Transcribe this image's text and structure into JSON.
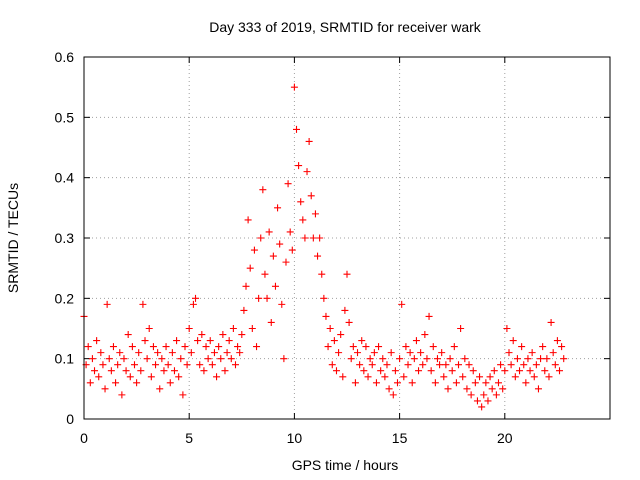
{
  "chart_data": {
    "type": "scatter",
    "title": "Day 333 of 2019, SRMTID for receiver wark",
    "xlabel": "GPS time / hours",
    "ylabel": "SRMTID / TECUs",
    "xlim": [
      0,
      25
    ],
    "ylim": [
      0,
      0.6
    ],
    "x_ticks": [
      0,
      5,
      10,
      15,
      20
    ],
    "x_tick_labels": [
      "0",
      "5",
      "10",
      "15",
      "20"
    ],
    "y_ticks": [
      0,
      0.1,
      0.2,
      0.3,
      0.4,
      0.5,
      0.6
    ],
    "y_tick_labels": [
      "0",
      "0.1",
      "0.2",
      "0.3",
      "0.4",
      "0.5",
      "0.6"
    ],
    "grid": true,
    "marker": "plus",
    "color": "#ff0000",
    "series": [
      {
        "name": "SRMTID",
        "points": [
          [
            0.0,
            0.17
          ],
          [
            0.1,
            0.09
          ],
          [
            0.2,
            0.12
          ],
          [
            0.3,
            0.06
          ],
          [
            0.4,
            0.1
          ],
          [
            0.5,
            0.08
          ],
          [
            0.6,
            0.13
          ],
          [
            0.7,
            0.07
          ],
          [
            0.8,
            0.11
          ],
          [
            0.9,
            0.09
          ],
          [
            1.0,
            0.05
          ],
          [
            1.1,
            0.19
          ],
          [
            1.2,
            0.1
          ],
          [
            1.3,
            0.08
          ],
          [
            1.4,
            0.12
          ],
          [
            1.5,
            0.06
          ],
          [
            1.6,
            0.09
          ],
          [
            1.7,
            0.11
          ],
          [
            1.8,
            0.04
          ],
          [
            1.9,
            0.1
          ],
          [
            2.0,
            0.08
          ],
          [
            2.1,
            0.14
          ],
          [
            2.2,
            0.07
          ],
          [
            2.3,
            0.12
          ],
          [
            2.4,
            0.09
          ],
          [
            2.5,
            0.06
          ],
          [
            2.6,
            0.11
          ],
          [
            2.7,
            0.08
          ],
          [
            2.8,
            0.19
          ],
          [
            2.9,
            0.13
          ],
          [
            3.0,
            0.1
          ],
          [
            3.1,
            0.15
          ],
          [
            3.2,
            0.07
          ],
          [
            3.3,
            0.12
          ],
          [
            3.4,
            0.09
          ],
          [
            3.5,
            0.11
          ],
          [
            3.6,
            0.05
          ],
          [
            3.7,
            0.1
          ],
          [
            3.8,
            0.08
          ],
          [
            3.9,
            0.12
          ],
          [
            4.0,
            0.09
          ],
          [
            4.1,
            0.06
          ],
          [
            4.2,
            0.11
          ],
          [
            4.3,
            0.08
          ],
          [
            4.4,
            0.13
          ],
          [
            4.5,
            0.07
          ],
          [
            4.6,
            0.1
          ],
          [
            4.7,
            0.04
          ],
          [
            4.8,
            0.12
          ],
          [
            4.9,
            0.09
          ],
          [
            5.0,
            0.15
          ],
          [
            5.1,
            0.11
          ],
          [
            5.2,
            0.19
          ],
          [
            5.3,
            0.2
          ],
          [
            5.4,
            0.13
          ],
          [
            5.5,
            0.09
          ],
          [
            5.6,
            0.14
          ],
          [
            5.7,
            0.08
          ],
          [
            5.8,
            0.12
          ],
          [
            5.9,
            0.1
          ],
          [
            6.0,
            0.13
          ],
          [
            6.1,
            0.09
          ],
          [
            6.2,
            0.11
          ],
          [
            6.3,
            0.07
          ],
          [
            6.4,
            0.12
          ],
          [
            6.5,
            0.1
          ],
          [
            6.6,
            0.14
          ],
          [
            6.7,
            0.08
          ],
          [
            6.8,
            0.11
          ],
          [
            6.9,
            0.13
          ],
          [
            7.0,
            0.1
          ],
          [
            7.1,
            0.15
          ],
          [
            7.2,
            0.09
          ],
          [
            7.3,
            0.12
          ],
          [
            7.4,
            0.11
          ],
          [
            7.5,
            0.14
          ],
          [
            7.6,
            0.18
          ],
          [
            7.7,
            0.22
          ],
          [
            7.8,
            0.33
          ],
          [
            7.9,
            0.25
          ],
          [
            8.0,
            0.15
          ],
          [
            8.1,
            0.28
          ],
          [
            8.2,
            0.12
          ],
          [
            8.3,
            0.2
          ],
          [
            8.4,
            0.3
          ],
          [
            8.5,
            0.38
          ],
          [
            8.6,
            0.24
          ],
          [
            8.7,
            0.2
          ],
          [
            8.8,
            0.31
          ],
          [
            8.9,
            0.16
          ],
          [
            9.0,
            0.27
          ],
          [
            9.1,
            0.22
          ],
          [
            9.2,
            0.35
          ],
          [
            9.3,
            0.29
          ],
          [
            9.4,
            0.19
          ],
          [
            9.5,
            0.1
          ],
          [
            9.6,
            0.26
          ],
          [
            9.7,
            0.39
          ],
          [
            9.8,
            0.31
          ],
          [
            9.9,
            0.28
          ],
          [
            10.0,
            0.55
          ],
          [
            10.1,
            0.48
          ],
          [
            10.2,
            0.42
          ],
          [
            10.3,
            0.36
          ],
          [
            10.4,
            0.33
          ],
          [
            10.5,
            0.3
          ],
          [
            10.6,
            0.41
          ],
          [
            10.7,
            0.46
          ],
          [
            10.8,
            0.37
          ],
          [
            10.9,
            0.3
          ],
          [
            11.0,
            0.34
          ],
          [
            11.1,
            0.27
          ],
          [
            11.2,
            0.3
          ],
          [
            11.3,
            0.24
          ],
          [
            11.4,
            0.2
          ],
          [
            11.5,
            0.17
          ],
          [
            11.6,
            0.12
          ],
          [
            11.7,
            0.15
          ],
          [
            11.8,
            0.09
          ],
          [
            11.9,
            0.13
          ],
          [
            12.0,
            0.08
          ],
          [
            12.1,
            0.11
          ],
          [
            12.2,
            0.14
          ],
          [
            12.3,
            0.07
          ],
          [
            12.4,
            0.18
          ],
          [
            12.5,
            0.24
          ],
          [
            12.6,
            0.16
          ],
          [
            12.7,
            0.1
          ],
          [
            12.8,
            0.12
          ],
          [
            12.9,
            0.06
          ],
          [
            13.0,
            0.11
          ],
          [
            13.1,
            0.09
          ],
          [
            13.2,
            0.13
          ],
          [
            13.3,
            0.08
          ],
          [
            13.4,
            0.12
          ],
          [
            13.5,
            0.07
          ],
          [
            13.6,
            0.1
          ],
          [
            13.7,
            0.09
          ],
          [
            13.8,
            0.11
          ],
          [
            13.9,
            0.06
          ],
          [
            14.0,
            0.12
          ],
          [
            14.1,
            0.08
          ],
          [
            14.2,
            0.1
          ],
          [
            14.3,
            0.07
          ],
          [
            14.4,
            0.09
          ],
          [
            14.5,
            0.05
          ],
          [
            14.6,
            0.11
          ],
          [
            14.7,
            0.04
          ],
          [
            14.8,
            0.08
          ],
          [
            14.9,
            0.06
          ],
          [
            15.0,
            0.1
          ],
          [
            15.1,
            0.19
          ],
          [
            15.2,
            0.07
          ],
          [
            15.3,
            0.12
          ],
          [
            15.4,
            0.09
          ],
          [
            15.5,
            0.11
          ],
          [
            15.6,
            0.06
          ],
          [
            15.7,
            0.1
          ],
          [
            15.8,
            0.13
          ],
          [
            15.9,
            0.08
          ],
          [
            16.0,
            0.11
          ],
          [
            16.1,
            0.09
          ],
          [
            16.2,
            0.14
          ],
          [
            16.3,
            0.1
          ],
          [
            16.4,
            0.17
          ],
          [
            16.5,
            0.08
          ],
          [
            16.6,
            0.12
          ],
          [
            16.7,
            0.06
          ],
          [
            16.8,
            0.1
          ],
          [
            16.9,
            0.09
          ],
          [
            17.0,
            0.11
          ],
          [
            17.1,
            0.07
          ],
          [
            17.2,
            0.09
          ],
          [
            17.3,
            0.05
          ],
          [
            17.4,
            0.1
          ],
          [
            17.5,
            0.08
          ],
          [
            17.6,
            0.12
          ],
          [
            17.7,
            0.06
          ],
          [
            17.8,
            0.09
          ],
          [
            17.9,
            0.15
          ],
          [
            18.0,
            0.07
          ],
          [
            18.1,
            0.1
          ],
          [
            18.2,
            0.05
          ],
          [
            18.3,
            0.09
          ],
          [
            18.4,
            0.04
          ],
          [
            18.5,
            0.08
          ],
          [
            18.6,
            0.06
          ],
          [
            18.7,
            0.03
          ],
          [
            18.8,
            0.07
          ],
          [
            18.9,
            0.02
          ],
          [
            19.0,
            0.04
          ],
          [
            19.1,
            0.06
          ],
          [
            19.2,
            0.03
          ],
          [
            19.3,
            0.07
          ],
          [
            19.4,
            0.05
          ],
          [
            19.5,
            0.08
          ],
          [
            19.6,
            0.04
          ],
          [
            19.7,
            0.06
          ],
          [
            19.8,
            0.09
          ],
          [
            19.9,
            0.05
          ],
          [
            20.0,
            0.08
          ],
          [
            20.1,
            0.15
          ],
          [
            20.2,
            0.11
          ],
          [
            20.3,
            0.09
          ],
          [
            20.4,
            0.13
          ],
          [
            20.5,
            0.07
          ],
          [
            20.6,
            0.1
          ],
          [
            20.7,
            0.08
          ],
          [
            20.8,
            0.12
          ],
          [
            20.9,
            0.09
          ],
          [
            21.0,
            0.06
          ],
          [
            21.1,
            0.1
          ],
          [
            21.2,
            0.08
          ],
          [
            21.3,
            0.11
          ],
          [
            21.4,
            0.07
          ],
          [
            21.5,
            0.09
          ],
          [
            21.6,
            0.05
          ],
          [
            21.7,
            0.1
          ],
          [
            21.8,
            0.12
          ],
          [
            21.9,
            0.08
          ],
          [
            22.0,
            0.1
          ],
          [
            22.1,
            0.07
          ],
          [
            22.2,
            0.16
          ],
          [
            22.3,
            0.11
          ],
          [
            22.4,
            0.09
          ],
          [
            22.5,
            0.13
          ],
          [
            22.6,
            0.08
          ],
          [
            22.7,
            0.12
          ],
          [
            22.8,
            0.1
          ]
        ]
      }
    ]
  }
}
